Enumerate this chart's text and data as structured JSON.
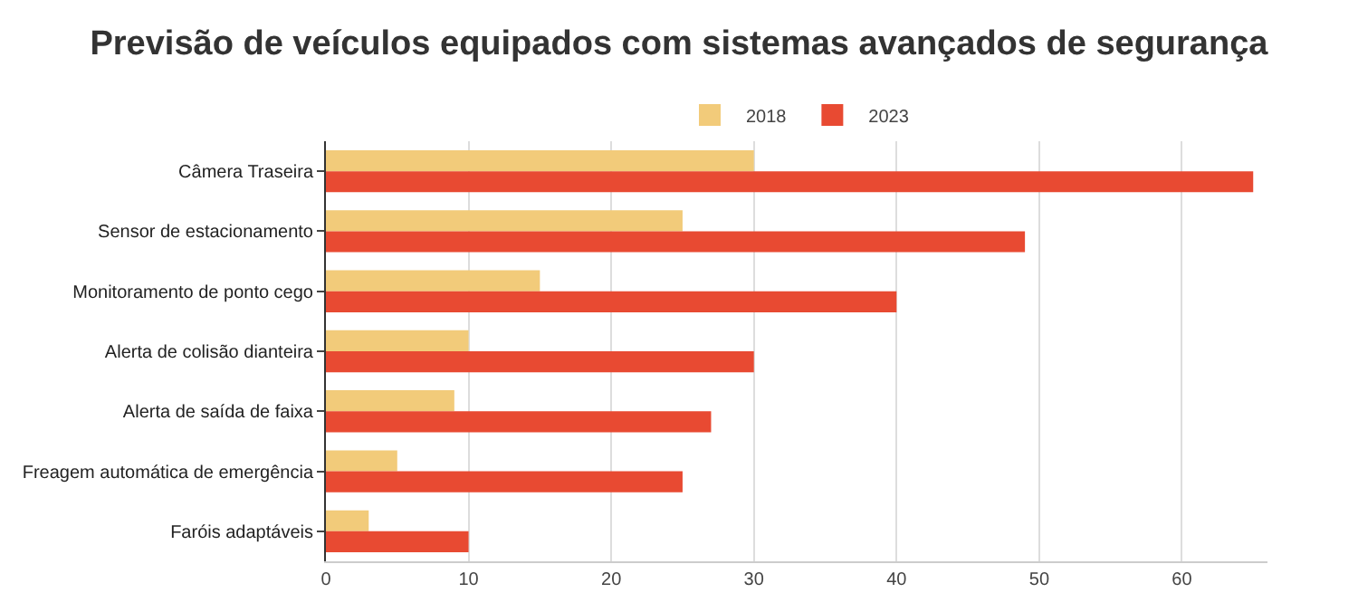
{
  "chart_data": {
    "type": "bar",
    "orientation": "horizontal",
    "title": "Previsão de veículos equipados com sistemas avançados de segurança",
    "categories": [
      "Câmera Traseira",
      "Sensor de estacionamento",
      "Monitoramento de ponto cego",
      "Alerta de colisão dianteira",
      "Alerta de saída de faixa",
      "Freagem automática de emergência",
      "Faróis adaptáveis"
    ],
    "series": [
      {
        "name": "2018",
        "color": "#f2cb7a",
        "values": [
          30,
          25,
          15,
          10,
          9,
          5,
          3
        ]
      },
      {
        "name": "2023",
        "color": "#e84a32",
        "values": [
          65,
          49,
          40,
          30,
          27,
          25,
          10
        ]
      }
    ],
    "xlim": [
      0,
      66
    ],
    "xticks": [
      0,
      10,
      20,
      30,
      40,
      50,
      60
    ],
    "grid": "x",
    "legend": "top"
  }
}
